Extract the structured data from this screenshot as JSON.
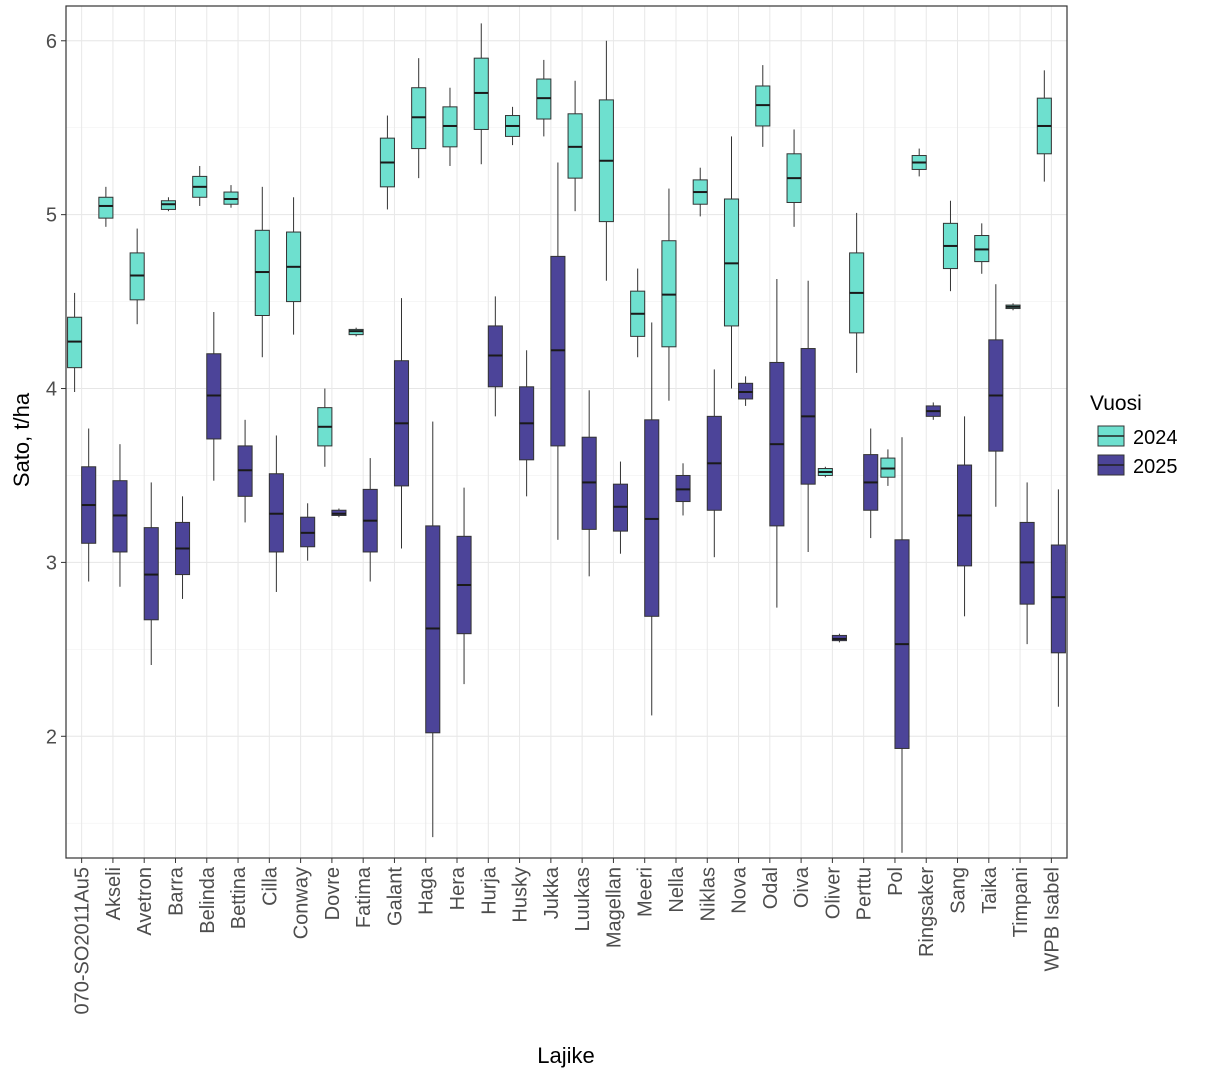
{
  "chart_data": {
    "type": "boxplot",
    "xlabel": "Lajike",
    "ylabel": "Sato, t/ha",
    "ylim": [
      1.3,
      6.2
    ],
    "yticks": [
      2,
      3,
      4,
      5,
      6
    ],
    "grid": true,
    "legend": {
      "title": "Vuosi",
      "position": "right",
      "entries": [
        {
          "name": "2024",
          "color": "#6ee0cf"
        },
        {
          "name": "2025",
          "color": "#4c4499"
        }
      ]
    },
    "categories": [
      "070-SO2011Au5",
      "Akseli",
      "Avetron",
      "Barra",
      "Belinda",
      "Bettina",
      "Cilla",
      "Conway",
      "Dovre",
      "Fatima",
      "Galant",
      "Haga",
      "Hera",
      "Hurja",
      "Husky",
      "Jukka",
      "Luukas",
      "Magellan",
      "Meeri",
      "Nella",
      "Niklas",
      "Nova",
      "Odal",
      "Oiva",
      "Oliver",
      "Perttu",
      "Pol",
      "Ringsaker",
      "Sang",
      "Taika",
      "Timpani",
      "WPB Isabel"
    ],
    "series": [
      {
        "name": "2024",
        "color": "#6ee0cf",
        "boxes": [
          {
            "category": "070-SO2011Au5",
            "min": 3.98,
            "q1": 4.12,
            "median": 4.27,
            "q3": 4.41,
            "max": 4.55
          },
          {
            "category": "Akseli",
            "min": 4.93,
            "q1": 4.98,
            "median": 5.05,
            "q3": 5.1,
            "max": 5.16
          },
          {
            "category": "Avetron",
            "min": 4.37,
            "q1": 4.51,
            "median": 4.65,
            "q3": 4.78,
            "max": 4.92
          },
          {
            "category": "Barra",
            "min": 5.02,
            "q1": 5.03,
            "median": 5.06,
            "q3": 5.08,
            "max": 5.1
          },
          {
            "category": "Belinda",
            "min": 5.05,
            "q1": 5.1,
            "median": 5.16,
            "q3": 5.22,
            "max": 5.28
          },
          {
            "category": "Bettina",
            "min": 5.04,
            "q1": 5.06,
            "median": 5.09,
            "q3": 5.13,
            "max": 5.17
          },
          {
            "category": "Cilla",
            "min": 4.18,
            "q1": 4.42,
            "median": 4.67,
            "q3": 4.91,
            "max": 5.16
          },
          {
            "category": "Conway",
            "min": 4.31,
            "q1": 4.5,
            "median": 4.7,
            "q3": 4.9,
            "max": 5.1
          },
          {
            "category": "Dovre",
            "min": 3.55,
            "q1": 3.67,
            "median": 3.78,
            "q3": 3.89,
            "max": 4.0
          },
          {
            "category": "Fatima",
            "min": 4.3,
            "q1": 4.31,
            "median": 4.33,
            "q3": 4.34,
            "max": 4.35
          },
          {
            "category": "Galant",
            "min": 5.03,
            "q1": 5.16,
            "median": 5.3,
            "q3": 5.44,
            "max": 5.57
          },
          {
            "category": "Haga",
            "min": 5.21,
            "q1": 5.38,
            "median": 5.56,
            "q3": 5.73,
            "max": 5.9
          },
          {
            "category": "Hera",
            "min": 5.28,
            "q1": 5.39,
            "median": 5.51,
            "q3": 5.62,
            "max": 5.73
          },
          {
            "category": "Hurja",
            "min": 5.29,
            "q1": 5.49,
            "median": 5.7,
            "q3": 5.9,
            "max": 6.1
          },
          {
            "category": "Husky",
            "min": 5.4,
            "q1": 5.45,
            "median": 5.51,
            "q3": 5.57,
            "max": 5.62
          },
          {
            "category": "Jukka",
            "min": 5.45,
            "q1": 5.55,
            "median": 5.67,
            "q3": 5.78,
            "max": 5.89
          },
          {
            "category": "Luukas",
            "min": 5.02,
            "q1": 5.21,
            "median": 5.39,
            "q3": 5.58,
            "max": 5.77
          },
          {
            "category": "Magellan",
            "min": 4.62,
            "q1": 4.96,
            "median": 5.31,
            "q3": 5.66,
            "max": 6.0
          },
          {
            "category": "Meeri",
            "min": 4.18,
            "q1": 4.3,
            "median": 4.43,
            "q3": 4.56,
            "max": 4.69
          },
          {
            "category": "Nella",
            "min": 3.93,
            "q1": 4.24,
            "median": 4.54,
            "q3": 4.85,
            "max": 5.15
          },
          {
            "category": "Niklas",
            "min": 4.99,
            "q1": 5.06,
            "median": 5.13,
            "q3": 5.2,
            "max": 5.27
          },
          {
            "category": "Nova",
            "min": 4.0,
            "q1": 4.36,
            "median": 4.72,
            "q3": 5.09,
            "max": 5.45
          },
          {
            "category": "Odal",
            "min": 5.39,
            "q1": 5.51,
            "median": 5.63,
            "q3": 5.74,
            "max": 5.86
          },
          {
            "category": "Oiva",
            "min": 4.93,
            "q1": 5.07,
            "median": 5.21,
            "q3": 5.35,
            "max": 5.49
          },
          {
            "category": "Oliver",
            "min": 3.49,
            "q1": 3.5,
            "median": 3.52,
            "q3": 3.54,
            "max": 3.55
          },
          {
            "category": "Perttu",
            "min": 4.09,
            "q1": 4.32,
            "median": 4.55,
            "q3": 4.78,
            "max": 5.01
          },
          {
            "category": "Pol",
            "min": 3.44,
            "q1": 3.49,
            "median": 3.54,
            "q3": 3.6,
            "max": 3.65
          },
          {
            "category": "Ringsaker",
            "min": 5.22,
            "q1": 5.26,
            "median": 5.3,
            "q3": 5.34,
            "max": 5.38
          },
          {
            "category": "Sang",
            "min": 4.56,
            "q1": 4.69,
            "median": 4.82,
            "q3": 4.95,
            "max": 5.08
          },
          {
            "category": "Taika",
            "min": 4.66,
            "q1": 4.73,
            "median": 4.8,
            "q3": 4.88,
            "max": 4.95
          },
          {
            "category": "Timpani",
            "min": 4.45,
            "q1": 4.46,
            "median": 4.47,
            "q3": 4.48,
            "max": 4.49
          },
          {
            "category": "WPB Isabel",
            "min": 5.19,
            "q1": 5.35,
            "median": 5.51,
            "q3": 5.67,
            "max": 5.83
          }
        ]
      },
      {
        "name": "2025",
        "color": "#4c4499",
        "boxes": [
          {
            "category": "070-SO2011Au5",
            "min": 2.89,
            "q1": 3.11,
            "median": 3.33,
            "q3": 3.55,
            "max": 3.77
          },
          {
            "category": "Akseli",
            "min": 2.86,
            "q1": 3.06,
            "median": 3.27,
            "q3": 3.47,
            "max": 3.68
          },
          {
            "category": "Avetron",
            "min": 2.41,
            "q1": 2.67,
            "median": 2.93,
            "q3": 3.2,
            "max": 3.46
          },
          {
            "category": "Barra",
            "min": 2.79,
            "q1": 2.93,
            "median": 3.08,
            "q3": 3.23,
            "max": 3.38
          },
          {
            "category": "Belinda",
            "min": 3.47,
            "q1": 3.71,
            "median": 3.96,
            "q3": 4.2,
            "max": 4.44
          },
          {
            "category": "Bettina",
            "min": 3.23,
            "q1": 3.38,
            "median": 3.53,
            "q3": 3.67,
            "max": 3.82
          },
          {
            "category": "Cilla",
            "min": 2.83,
            "q1": 3.06,
            "median": 3.28,
            "q3": 3.51,
            "max": 3.73
          },
          {
            "category": "Conway",
            "min": 3.01,
            "q1": 3.09,
            "median": 3.17,
            "q3": 3.26,
            "max": 3.34
          },
          {
            "category": "Dovre",
            "min": 3.26,
            "q1": 3.27,
            "median": 3.28,
            "q3": 3.3,
            "max": 3.31
          },
          {
            "category": "Fatima",
            "min": 2.89,
            "q1": 3.06,
            "median": 3.24,
            "q3": 3.42,
            "max": 3.6
          },
          {
            "category": "Galant",
            "min": 3.08,
            "q1": 3.44,
            "median": 3.8,
            "q3": 4.16,
            "max": 4.52
          },
          {
            "category": "Haga",
            "min": 1.42,
            "q1": 2.02,
            "median": 2.62,
            "q3": 3.21,
            "max": 3.81
          },
          {
            "category": "Hera",
            "min": 2.3,
            "q1": 2.59,
            "median": 2.87,
            "q3": 3.15,
            "max": 3.43
          },
          {
            "category": "Hurja",
            "min": 3.84,
            "q1": 4.01,
            "median": 4.19,
            "q3": 4.36,
            "max": 4.53
          },
          {
            "category": "Husky",
            "min": 3.38,
            "q1": 3.59,
            "median": 3.8,
            "q3": 4.01,
            "max": 4.22
          },
          {
            "category": "Jukka",
            "min": 3.13,
            "q1": 3.67,
            "median": 4.22,
            "q3": 4.76,
            "max": 5.3
          },
          {
            "category": "Luukas",
            "min": 2.92,
            "q1": 3.19,
            "median": 3.46,
            "q3": 3.72,
            "max": 3.99
          },
          {
            "category": "Magellan",
            "min": 3.05,
            "q1": 3.18,
            "median": 3.32,
            "q3": 3.45,
            "max": 3.58
          },
          {
            "category": "Meeri",
            "min": 2.12,
            "q1": 2.69,
            "median": 3.25,
            "q3": 3.82,
            "max": 4.38
          },
          {
            "category": "Nella",
            "min": 3.27,
            "q1": 3.35,
            "median": 3.42,
            "q3": 3.5,
            "max": 3.57
          },
          {
            "category": "Niklas",
            "min": 3.03,
            "q1": 3.3,
            "median": 3.57,
            "q3": 3.84,
            "max": 4.11
          },
          {
            "category": "Nova",
            "min": 3.9,
            "q1": 3.94,
            "median": 3.98,
            "q3": 4.03,
            "max": 4.07
          },
          {
            "category": "Odal",
            "min": 2.74,
            "q1": 3.21,
            "median": 3.68,
            "q3": 4.15,
            "max": 4.63
          },
          {
            "category": "Oiva",
            "min": 3.06,
            "q1": 3.45,
            "median": 3.84,
            "q3": 4.23,
            "max": 4.62
          },
          {
            "category": "Oliver",
            "min": 2.54,
            "q1": 2.55,
            "median": 2.56,
            "q3": 2.58,
            "max": 2.59
          },
          {
            "category": "Perttu",
            "min": 3.14,
            "q1": 3.3,
            "median": 3.46,
            "q3": 3.62,
            "max": 3.77
          },
          {
            "category": "Pol",
            "min": 1.33,
            "q1": 1.93,
            "median": 2.53,
            "q3": 3.13,
            "max": 3.72
          },
          {
            "category": "Ringsaker",
            "min": 3.82,
            "q1": 3.84,
            "median": 3.87,
            "q3": 3.9,
            "max": 3.92
          },
          {
            "category": "Sang",
            "min": 2.69,
            "q1": 2.98,
            "median": 3.27,
            "q3": 3.56,
            "max": 3.84
          },
          {
            "category": "Taika",
            "min": 3.32,
            "q1": 3.64,
            "median": 3.96,
            "q3": 4.28,
            "max": 4.6
          },
          {
            "category": "Timpani",
            "min": 2.53,
            "q1": 2.76,
            "median": 3.0,
            "q3": 3.23,
            "max": 3.46
          },
          {
            "category": "WPB Isabel",
            "min": 2.17,
            "q1": 2.48,
            "median": 2.8,
            "q3": 3.1,
            "max": 3.42
          }
        ]
      }
    ]
  }
}
